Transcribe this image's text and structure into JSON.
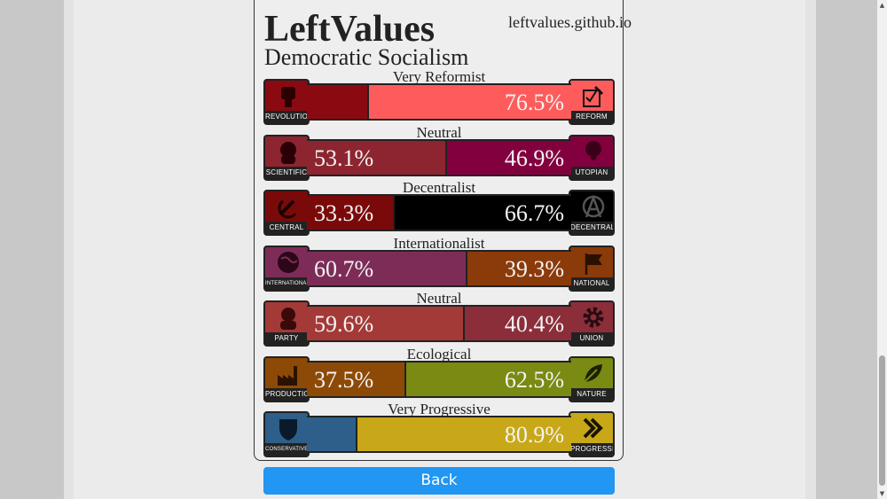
{
  "header": {
    "title": "LeftValues",
    "site": "leftvalues.github.io",
    "ideology": "Democratic Socialism"
  },
  "axes": [
    {
      "label": "Very Reformist",
      "left": {
        "name": "REVOLUTION",
        "icon": "raised-fist-icon",
        "color": "#8b0a11",
        "percent": 23.5,
        "text": ""
      },
      "right": {
        "name": "REFORM",
        "icon": "ballot-icon",
        "color": "#fe5c5c",
        "percent": 76.5,
        "text": "76.5%"
      }
    },
    {
      "label": "Neutral",
      "left": {
        "name": "SCIENTIFIC",
        "icon": "marx-portrait-icon",
        "color": "#8c2530",
        "percent": 53.1,
        "text": "53.1%"
      },
      "right": {
        "name": "UTOPIAN",
        "icon": "rose-icon",
        "color": "#83003f",
        "percent": 46.9,
        "text": "46.9%"
      }
    },
    {
      "label": "Decentralist",
      "left": {
        "name": "CENTRAL",
        "icon": "hammer-sickle-icon",
        "color": "#7a0a0a",
        "percent": 33.3,
        "text": "33.3%"
      },
      "right": {
        "name": "DECENTRAL",
        "icon": "anarchy-icon",
        "color": "#000000",
        "percent": 66.7,
        "text": "66.7%"
      }
    },
    {
      "label": "Internationalist",
      "left": {
        "name": "INTERNATIONAL",
        "icon": "globe-icon",
        "color": "#7d2c58",
        "percent": 60.7,
        "text": "60.7%"
      },
      "right": {
        "name": "NATIONAL",
        "icon": "flag-icon",
        "color": "#8b3a0a",
        "percent": 39.3,
        "text": "39.3%"
      }
    },
    {
      "label": "Neutral",
      "left": {
        "name": "PARTY",
        "icon": "lenin-portrait-icon",
        "color": "#a33a38",
        "percent": 59.6,
        "text": "59.6%"
      },
      "right": {
        "name": "UNION",
        "icon": "gear-icon",
        "color": "#8b2e3a",
        "percent": 40.4,
        "text": "40.4%"
      }
    },
    {
      "label": "Ecological",
      "left": {
        "name": "PRODUCTION",
        "icon": "factory-icon",
        "color": "#8d4a06",
        "percent": 37.5,
        "text": "37.5%"
      },
      "right": {
        "name": "NATURE",
        "icon": "leaf-icon",
        "color": "#7a8a12",
        "percent": 62.5,
        "text": "62.5%"
      }
    },
    {
      "label": "Very Progressive",
      "left": {
        "name": "CONSERVATIVE",
        "icon": "shield-icon",
        "color": "#2d5f8a",
        "percent": 19.1,
        "text": ""
      },
      "right": {
        "name": "PROGRESSIVE",
        "icon": "double-chevron-icon",
        "color": "#c8a818",
        "percent": 80.9,
        "text": "80.9%"
      }
    }
  ],
  "back_button": {
    "label": "Back"
  },
  "scrollbar": {
    "up": "▲",
    "down": "▼"
  }
}
